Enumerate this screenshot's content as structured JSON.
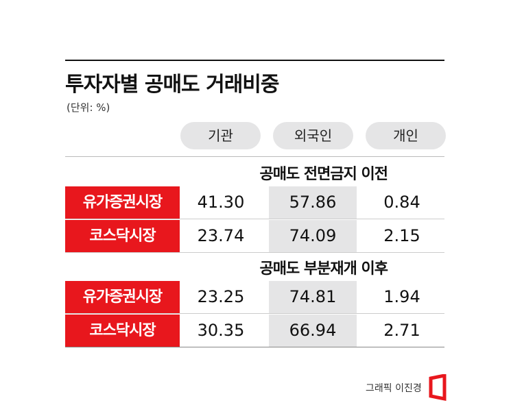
{
  "title": "투자자별 공매도 거래비중",
  "unit": "(단위: %)",
  "columns": [
    "기관",
    "외국인",
    "개인"
  ],
  "sections": [
    {
      "heading": "공매도 전면금지 이전",
      "rows": [
        {
          "label": "유가증권시장",
          "values": [
            "41.30",
            "57.86",
            "0.84"
          ]
        },
        {
          "label": "코스닥시장",
          "values": [
            "23.74",
            "74.09",
            "2.15"
          ]
        }
      ]
    },
    {
      "heading": "공매도 부분재개 이후",
      "rows": [
        {
          "label": "유가증권시장",
          "values": [
            "23.25",
            "74.81",
            "1.94"
          ]
        },
        {
          "label": "코스닥시장",
          "values": [
            "30.35",
            "66.94",
            "2.71"
          ]
        }
      ]
    }
  ],
  "credit": "그래픽 이진경"
}
